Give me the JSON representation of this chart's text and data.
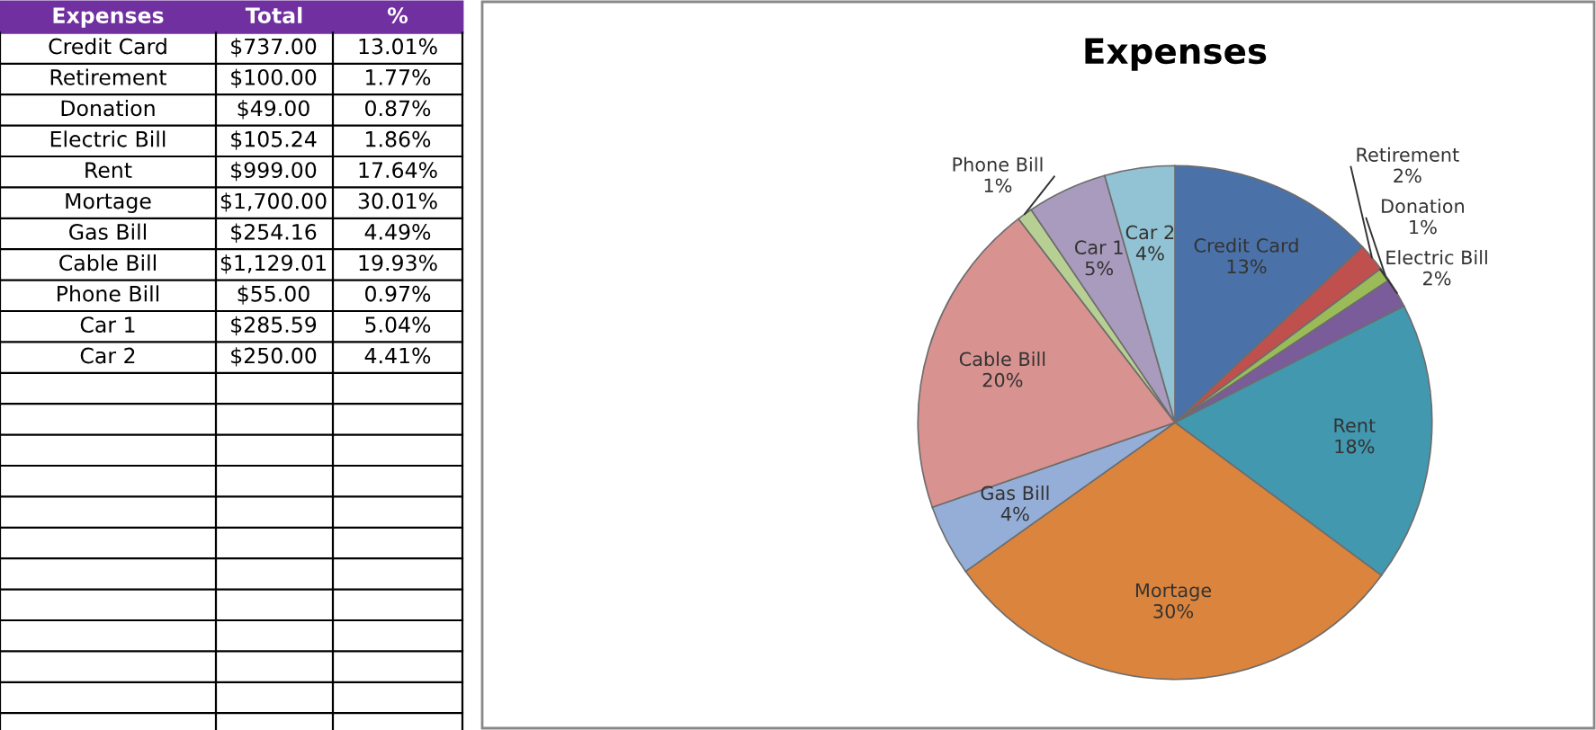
{
  "chart_data": {
    "type": "pie",
    "title": "Expenses",
    "categories": [
      "Credit Card",
      "Retirement",
      "Donation",
      "Electric Bill",
      "Rent",
      "Mortage",
      "Gas Bill",
      "Cable Bill",
      "Phone Bill",
      "Car 1",
      "Car 2"
    ],
    "values": [
      13.01,
      1.77,
      0.87,
      1.86,
      17.64,
      30.01,
      4.49,
      19.93,
      0.97,
      5.04,
      4.41
    ],
    "value_labels": [
      "13%",
      "2%",
      "1%",
      "2%",
      "18%",
      "30%",
      "4%",
      "20%",
      "1%",
      "5%",
      "4%"
    ],
    "colors": [
      "#4a72a8",
      "#c0504d",
      "#9bbb59",
      "#7a5c9a",
      "#4198af",
      "#db843d",
      "#95aed8",
      "#d8928f",
      "#b8cf94",
      "#a99bbd",
      "#92c3d4"
    ],
    "annotations": [
      "Expenses",
      "Total",
      "%",
      "$737.00",
      "$100.00",
      "$49.00",
      "$105.24",
      "$999.00",
      "$1,700.00",
      "$254.16",
      "$1,129.01",
      "$55.00",
      "$285.59",
      "$250.00",
      "13.01%",
      "1.77%",
      "0.87%",
      "1.86%",
      "17.64%",
      "30.01%",
      "4.49%",
      "19.93%",
      "0.97%",
      "5.04%",
      "4.41%"
    ],
    "legend": false
  }
}
